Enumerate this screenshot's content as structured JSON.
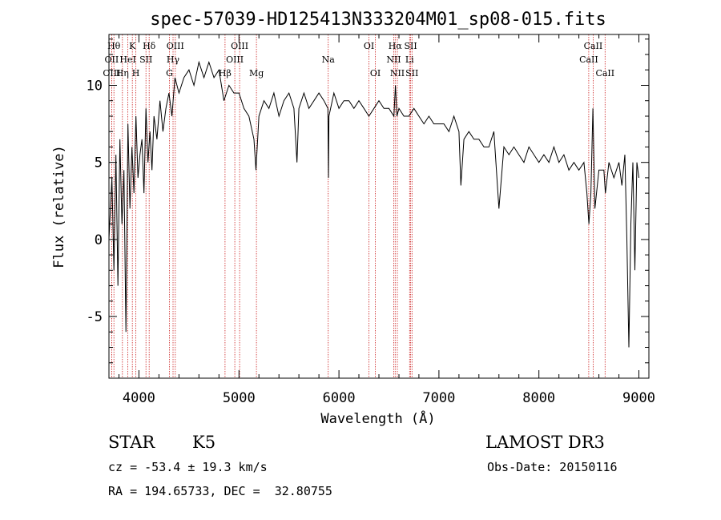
{
  "chart_data": {
    "type": "line",
    "title": "spec-57039-HD125413N333204M01_sp08-015.fits",
    "xlabel": "Wavelength (Å)",
    "ylabel": "Flux (relative)",
    "xlim": [
      3700,
      9100
    ],
    "ylim": [
      -9,
      13.3
    ],
    "x_ticks": [
      4000,
      5000,
      6000,
      7000,
      8000,
      9000
    ],
    "y_ticks": [
      -5,
      0,
      5,
      10
    ],
    "spectrum": {
      "x": [
        3700,
        3730,
        3750,
        3770,
        3790,
        3810,
        3830,
        3850,
        3870,
        3890,
        3910,
        3930,
        3950,
        3970,
        3990,
        4010,
        4030,
        4050,
        4070,
        4090,
        4110,
        4130,
        4150,
        4180,
        4210,
        4240,
        4270,
        4300,
        4330,
        4360,
        4400,
        4450,
        4500,
        4550,
        4600,
        4650,
        4700,
        4750,
        4800,
        4850,
        4900,
        4950,
        5000,
        5050,
        5100,
        5150,
        5170,
        5200,
        5250,
        5300,
        5350,
        5400,
        5450,
        5500,
        5550,
        5580,
        5600,
        5650,
        5700,
        5750,
        5800,
        5850,
        5890,
        5895,
        5900,
        5950,
        6000,
        6050,
        6100,
        6150,
        6200,
        6250,
        6300,
        6350,
        6400,
        6450,
        6500,
        6550,
        6565,
        6580,
        6600,
        6650,
        6700,
        6750,
        6800,
        6850,
        6900,
        6950,
        7000,
        7050,
        7100,
        7150,
        7200,
        7220,
        7250,
        7300,
        7350,
        7400,
        7450,
        7500,
        7550,
        7600,
        7650,
        7700,
        7750,
        7800,
        7850,
        7900,
        7950,
        8000,
        8050,
        8100,
        8150,
        8200,
        8250,
        8300,
        8350,
        8400,
        8450,
        8480,
        8500,
        8520,
        8540,
        8560,
        8600,
        8650,
        8665,
        8700,
        8750,
        8800,
        8830,
        8860,
        8880,
        8900,
        8920,
        8940,
        8960,
        8980,
        9000
      ],
      "y": [
        0.0,
        4.0,
        -2.0,
        5.5,
        -3.0,
        6.5,
        1.0,
        4.5,
        -6.0,
        7.5,
        2.0,
        6.0,
        3.0,
        8.0,
        4.0,
        5.5,
        6.5,
        3.0,
        8.5,
        5.0,
        7.0,
        4.5,
        8.0,
        6.5,
        9.0,
        7.0,
        8.5,
        9.5,
        8.0,
        10.5,
        9.5,
        10.5,
        11.0,
        10.0,
        11.5,
        10.5,
        11.5,
        10.5,
        11.0,
        9.0,
        10.0,
        9.5,
        9.5,
        8.5,
        8.0,
        6.5,
        4.5,
        8.0,
        9.0,
        8.5,
        9.5,
        8.0,
        9.0,
        9.5,
        8.5,
        5.0,
        8.5,
        9.5,
        8.5,
        9.0,
        9.5,
        9.0,
        8.5,
        4.0,
        8.0,
        9.5,
        8.5,
        9.0,
        9.0,
        8.5,
        9.0,
        8.5,
        8.0,
        8.5,
        9.0,
        8.5,
        8.5,
        8.0,
        10.0,
        8.0,
        8.5,
        8.0,
        8.0,
        8.5,
        8.0,
        7.5,
        8.0,
        7.5,
        7.5,
        7.5,
        7.0,
        8.0,
        7.0,
        3.5,
        6.5,
        7.0,
        6.5,
        6.5,
        6.0,
        6.0,
        7.0,
        2.0,
        6.0,
        5.5,
        6.0,
        5.5,
        5.0,
        6.0,
        5.5,
        5.0,
        5.5,
        5.0,
        6.0,
        5.0,
        5.5,
        4.5,
        5.0,
        4.5,
        5.0,
        3.0,
        1.0,
        3.0,
        8.5,
        2.0,
        4.5,
        4.5,
        3.0,
        5.0,
        4.0,
        5.0,
        3.5,
        5.5,
        0.0,
        -7.0,
        1.0,
        5.0,
        -2.0,
        5.0,
        4.0
      ]
    },
    "lines": [
      {
        "label": "Hθ",
        "x": 3750,
        "row": 1
      },
      {
        "label": "OII",
        "x": 3727,
        "row": 2
      },
      {
        "label": "OIII",
        "x": 3727,
        "row": 3
      },
      {
        "label": "Hη",
        "x": 3835,
        "row": 3
      },
      {
        "label": "K",
        "x": 3934,
        "row": 1
      },
      {
        "label": "HeI",
        "x": 3889,
        "row": 2
      },
      {
        "label": "H",
        "x": 3969,
        "row": 3
      },
      {
        "label": "Hδ",
        "x": 4102,
        "row": 1
      },
      {
        "label": "SII",
        "x": 4070,
        "row": 2
      },
      {
        "label": "OIII",
        "x": 4363,
        "row": 1
      },
      {
        "label": "Hγ",
        "x": 4341,
        "row": 2
      },
      {
        "label": "G",
        "x": 4305,
        "row": 3
      },
      {
        "label": "Hβ",
        "x": 4861,
        "row": 3
      },
      {
        "label": "OIII",
        "x": 5007,
        "row": 1
      },
      {
        "label": "OIII",
        "x": 4959,
        "row": 2
      },
      {
        "label": "Mg",
        "x": 5175,
        "row": 3
      },
      {
        "label": "Na",
        "x": 5893,
        "row": 2
      },
      {
        "label": "OI",
        "x": 6300,
        "row": 1
      },
      {
        "label": "OI",
        "x": 6364,
        "row": 3
      },
      {
        "label": "Hα",
        "x": 6563,
        "row": 1
      },
      {
        "label": "NII",
        "x": 6548,
        "row": 2
      },
      {
        "label": "NII",
        "x": 6584,
        "row": 3
      },
      {
        "label": "SII",
        "x": 6717,
        "row": 1
      },
      {
        "label": "Li",
        "x": 6707,
        "row": 2
      },
      {
        "label": "SII",
        "x": 6731,
        "row": 3
      },
      {
        "label": "CaII",
        "x": 8542,
        "row": 1
      },
      {
        "label": "CaII",
        "x": 8498,
        "row": 2
      },
      {
        "label": "CaII",
        "x": 8662,
        "row": 3
      }
    ],
    "line_color": "#cc2222",
    "spectrum_color": "#000000"
  },
  "info": {
    "object_type": "STAR",
    "subclass": "K5",
    "survey": "LAMOST DR3",
    "redshift": "cz = -53.4 ± 19.3 km/s",
    "obs_date": "Obs-Date: 20150116",
    "coords": "RA = 194.65733, DEC =  32.80755"
  }
}
